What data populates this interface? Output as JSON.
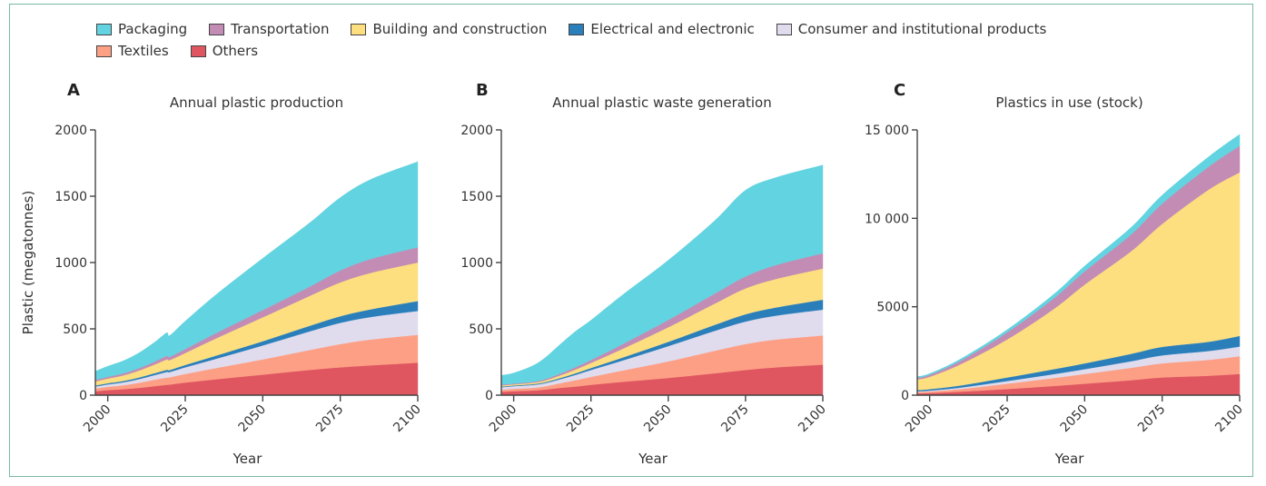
{
  "legend": {
    "items": [
      {
        "key": "packaging",
        "label": "Packaging",
        "color": "#62d3e0"
      },
      {
        "key": "transportation",
        "label": "Transportation",
        "color": "#c38cb4"
      },
      {
        "key": "building",
        "label": "Building and construction",
        "color": "#fddf80"
      },
      {
        "key": "electrical",
        "label": "Electrical and electronic",
        "color": "#2a7fbb"
      },
      {
        "key": "consumer",
        "label": "Consumer and institutional products",
        "color": "#e0dcee"
      },
      {
        "key": "textiles",
        "label": "Textiles",
        "color": "#fd9f85"
      },
      {
        "key": "others",
        "label": "Others",
        "color": "#df5660"
      }
    ]
  },
  "chart_data": [
    {
      "type": "area",
      "stacked": true,
      "panel": "A",
      "title": "Annual plastic production",
      "xlabel": "Year",
      "ylabel": "Plastic (megatonnes)",
      "xlim": [
        1996,
        2100
      ],
      "ylim": [
        0,
        2000
      ],
      "xticks": [
        2000,
        2025,
        2050,
        2075,
        2100
      ],
      "yticks": [
        0,
        500,
        1000,
        1500,
        2000
      ],
      "ytick_labels": [
        "0",
        "500",
        "1000",
        "1500",
        "2000"
      ],
      "x": [
        1996,
        2000,
        2005,
        2010,
        2015,
        2019,
        2020,
        2025,
        2035,
        2050,
        2065,
        2075,
        2085,
        2100
      ],
      "series": [
        {
          "name": "Others",
          "values": [
            30,
            38,
            45,
            55,
            68,
            78,
            80,
            95,
            120,
            155,
            190,
            210,
            225,
            245
          ]
        },
        {
          "name": "Textiles",
          "values": [
            20,
            25,
            30,
            38,
            48,
            55,
            55,
            65,
            85,
            115,
            150,
            175,
            195,
            210
          ]
        },
        {
          "name": "Consumer and institutional products",
          "values": [
            15,
            18,
            22,
            28,
            35,
            42,
            40,
            50,
            70,
            105,
            140,
            160,
            170,
            180
          ]
        },
        {
          "name": "Electrical and electronic",
          "values": [
            8,
            9,
            10,
            12,
            14,
            16,
            15,
            18,
            24,
            32,
            42,
            50,
            58,
            75
          ]
        },
        {
          "name": "Building and construction",
          "values": [
            30,
            35,
            42,
            52,
            65,
            78,
            75,
            90,
            130,
            180,
            225,
            255,
            275,
            290
          ]
        },
        {
          "name": "Transportation",
          "values": [
            12,
            13,
            15,
            18,
            22,
            26,
            25,
            30,
            40,
            55,
            70,
            90,
            105,
            115
          ]
        },
        {
          "name": "Packaging",
          "values": [
            65,
            80,
            95,
            115,
            145,
            175,
            160,
            210,
            290,
            390,
            480,
            550,
            600,
            645
          ]
        }
      ]
    },
    {
      "type": "area",
      "stacked": true,
      "panel": "B",
      "title": "Annual plastic waste generation",
      "xlabel": "Year",
      "ylabel": "",
      "xlim": [
        1996,
        2100
      ],
      "ylim": [
        0,
        2000
      ],
      "xticks": [
        2000,
        2025,
        2050,
        2075,
        2100
      ],
      "yticks": [
        0,
        500,
        1000,
        1500,
        2000
      ],
      "ytick_labels": [
        "0",
        "500",
        "1000",
        "1500",
        "2000"
      ],
      "x": [
        1996,
        2000,
        2006,
        2010,
        2015,
        2020,
        2025,
        2035,
        2050,
        2065,
        2075,
        2085,
        2100
      ],
      "series": [
        {
          "name": "Others",
          "values": [
            25,
            30,
            35,
            42,
            55,
            65,
            78,
            100,
            130,
            165,
            190,
            210,
            230
          ]
        },
        {
          "name": "Textiles",
          "values": [
            15,
            18,
            20,
            24,
            35,
            48,
            60,
            85,
            125,
            170,
            195,
            210,
            220
          ]
        },
        {
          "name": "Consumer and institutional products",
          "values": [
            20,
            20,
            22,
            24,
            30,
            40,
            52,
            75,
            115,
            150,
            170,
            180,
            195
          ]
        },
        {
          "name": "Electrical and electronic",
          "values": [
            5,
            5,
            6,
            7,
            9,
            12,
            15,
            22,
            32,
            45,
            55,
            62,
            75
          ]
        },
        {
          "name": "Building and construction",
          "values": [
            8,
            8,
            10,
            13,
            20,
            28,
            38,
            65,
            110,
            160,
            195,
            215,
            235
          ]
        },
        {
          "name": "Transportation",
          "values": [
            6,
            6,
            7,
            9,
            13,
            18,
            22,
            35,
            55,
            75,
            90,
            105,
            115
          ]
        },
        {
          "name": "Packaging",
          "values": [
            70,
            80,
            120,
            160,
            220,
            270,
            300,
            370,
            450,
            550,
            650,
            660,
            665
          ]
        }
      ]
    },
    {
      "type": "area",
      "stacked": true,
      "panel": "C",
      "title": "Plastics in use (stock)",
      "xlabel": "Year",
      "ylabel": "",
      "xlim": [
        1996,
        2100
      ],
      "ylim": [
        0,
        15000
      ],
      "xticks": [
        2000,
        2025,
        2050,
        2075,
        2100
      ],
      "yticks": [
        0,
        5000,
        10000,
        15000
      ],
      "ytick_labels": [
        "0",
        "5000",
        "10 000",
        "15 000"
      ],
      "x": [
        1996,
        2000,
        2010,
        2025,
        2040,
        2050,
        2065,
        2075,
        2090,
        2100
      ],
      "series": [
        {
          "name": "Others",
          "values": [
            100,
            120,
            200,
            350,
            520,
            650,
            850,
            1000,
            1100,
            1200
          ]
        },
        {
          "name": "Textiles",
          "values": [
            80,
            90,
            150,
            300,
            450,
            550,
            700,
            800,
            900,
            1000
          ]
        },
        {
          "name": "Consumer and institutional products",
          "values": [
            40,
            50,
            80,
            150,
            220,
            270,
            370,
            450,
            500,
            550
          ]
        },
        {
          "name": "Electrical and electronic",
          "values": [
            70,
            80,
            120,
            200,
            280,
            330,
            420,
            480,
            520,
            600
          ]
        },
        {
          "name": "Building and construction",
          "values": [
            600,
            700,
            1200,
            2150,
            3400,
            4450,
            5800,
            6950,
            8600,
            9250
          ]
        },
        {
          "name": "Transportation",
          "values": [
            100,
            110,
            200,
            400,
            600,
            750,
            950,
            1150,
            1300,
            1500
          ]
        },
        {
          "name": "Packaging",
          "values": [
            60,
            70,
            100,
            150,
            230,
            300,
            400,
            480,
            560,
            650
          ]
        }
      ]
    }
  ]
}
